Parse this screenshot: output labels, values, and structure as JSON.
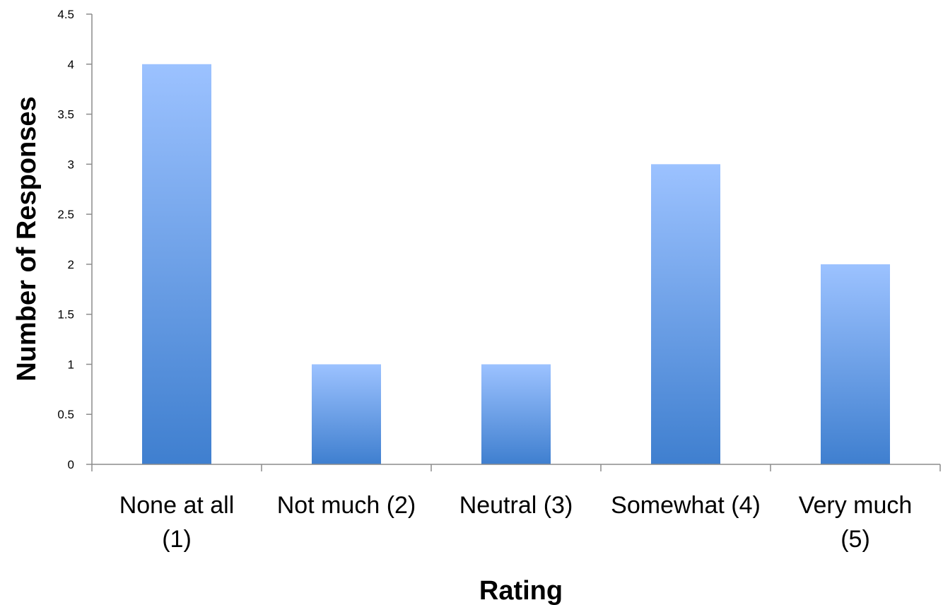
{
  "chart_data": {
    "type": "bar",
    "title": "",
    "xlabel": "Rating",
    "ylabel": "Number of Responses",
    "categories": [
      [
        "None at all",
        "(1)"
      ],
      [
        "Not much (2)"
      ],
      [
        "Neutral (3)"
      ],
      [
        "Somewhat (4)"
      ],
      [
        "Very much",
        "(5)"
      ]
    ],
    "values": [
      4,
      1,
      1,
      3,
      2
    ],
    "ylim": [
      0,
      4.5
    ],
    "yticks": [
      0,
      0.5,
      1,
      1.5,
      2,
      2.5,
      3,
      3.5,
      4,
      4.5
    ],
    "ytick_labels": [
      "0",
      "0.5",
      "1",
      "1.5",
      "2",
      "2.5",
      "3",
      "3.5",
      "4",
      "4.5"
    ],
    "grid": false,
    "legend": "none",
    "colors": {
      "bar_top": "#9cc2ff",
      "bar_bottom": "#3f7fcf",
      "axis": "#8c8c8c"
    }
  }
}
